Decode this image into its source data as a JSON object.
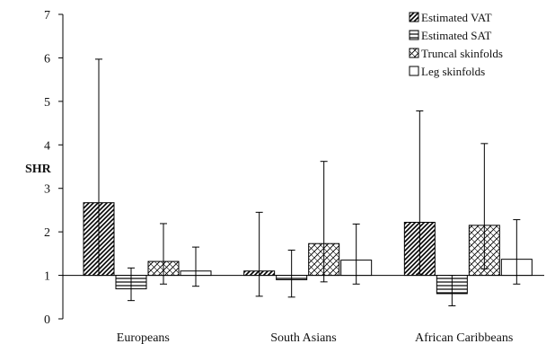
{
  "chart_data": {
    "type": "bar",
    "title": "",
    "xlabel": "",
    "ylabel": "SHR",
    "ylim": [
      0,
      7
    ],
    "yticks": [
      0,
      1,
      2,
      3,
      4,
      5,
      6,
      7
    ],
    "baseline": 1,
    "grid": false,
    "legend_position": "top-right",
    "categories": [
      "Europeans",
      "South Asians",
      "African Caribbeans"
    ],
    "series": [
      {
        "name": "Estimated VAT",
        "pattern": "diagonal-dense",
        "values": [
          2.67,
          1.1,
          2.22
        ],
        "err_low": [
          1.0,
          0.52,
          1.03
        ],
        "err_high": [
          5.97,
          2.45,
          4.78
        ]
      },
      {
        "name": "Estimated SAT",
        "pattern": "horizontal",
        "values": [
          0.69,
          0.9,
          0.58
        ],
        "err_low": [
          0.42,
          0.5,
          0.3
        ],
        "err_high": [
          1.17,
          1.58,
          1.0
        ]
      },
      {
        "name": "Truncal skinfolds",
        "pattern": "crosshatch",
        "values": [
          1.32,
          1.73,
          2.15
        ],
        "err_low": [
          0.8,
          0.85,
          1.15
        ],
        "err_high": [
          2.19,
          3.62,
          4.03
        ]
      },
      {
        "name": "Leg skinfolds",
        "pattern": "none",
        "values": [
          1.1,
          1.35,
          1.37
        ],
        "err_low": [
          0.75,
          0.8,
          0.8
        ],
        "err_high": [
          1.65,
          2.18,
          2.28
        ]
      }
    ],
    "colors": {
      "stroke": "#000000",
      "fill": "#ffffff"
    }
  }
}
